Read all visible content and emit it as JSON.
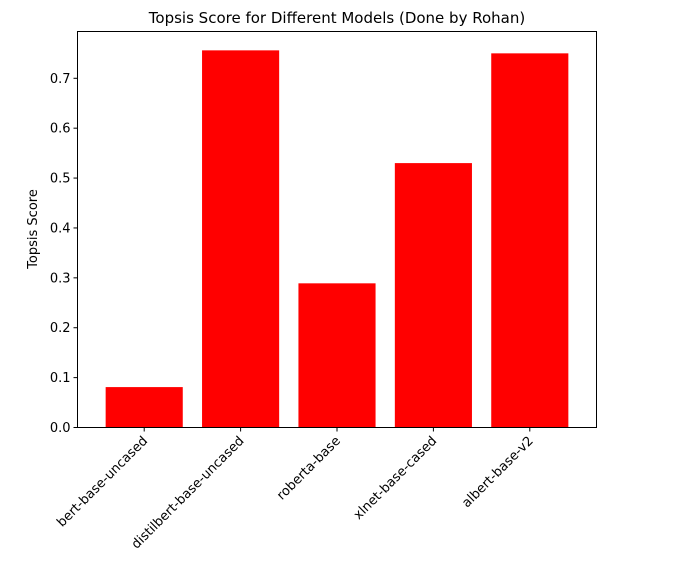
{
  "chart_data": {
    "type": "bar",
    "title": "Topsis Score for Different Models (Done by Rohan)",
    "xlabel": "",
    "ylabel": "Topsis Score",
    "categories": [
      "bert-base-uncased",
      "distilbert-base-uncased",
      "roberta-base",
      "xlnet-base-cased",
      "albert-base-v2"
    ],
    "values": [
      0.081,
      0.756,
      0.289,
      0.53,
      0.75
    ],
    "ylim": [
      0,
      0.7938
    ],
    "yticks": [
      "0.0",
      "0.1",
      "0.2",
      "0.3",
      "0.4",
      "0.5",
      "0.6",
      "0.7"
    ],
    "bar_color": "#ff0000",
    "grid": false,
    "legend": "none"
  }
}
